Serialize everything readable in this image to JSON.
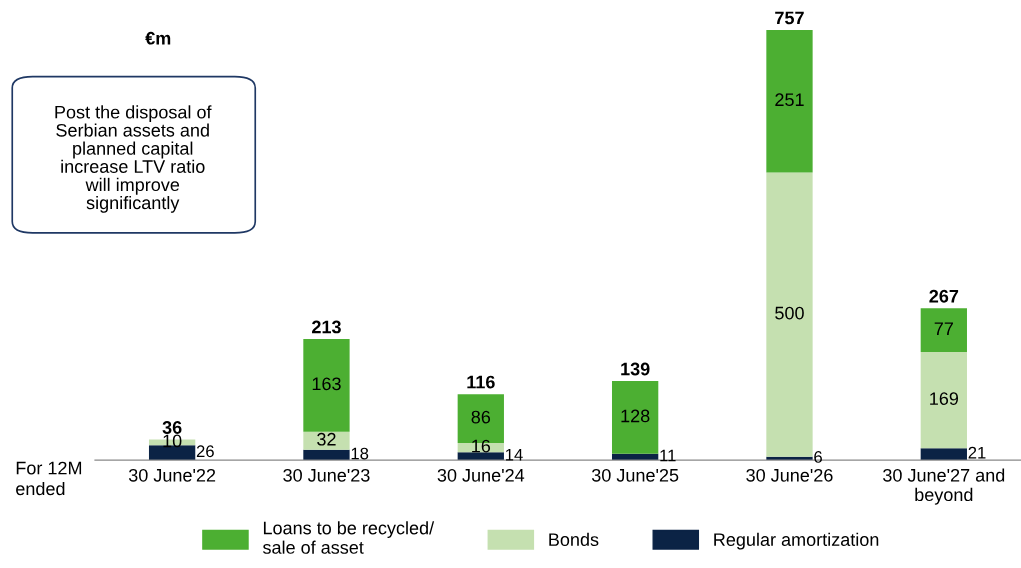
{
  "chart_data": {
    "type": "bar",
    "stacked": true,
    "categories": [
      "30 June'22",
      "30 June'23",
      "30 June'24",
      "30 June'25",
      "30 June'26",
      "30 June'27 and\nbeyond"
    ],
    "series": [
      {
        "name": "Regular amortization",
        "color": "#0b2345",
        "values": [
          26,
          18,
          14,
          11,
          6,
          21
        ],
        "value_labels": [
          "26",
          "18",
          "14",
          "11",
          "6",
          "21"
        ]
      },
      {
        "name": "Bonds",
        "color": "#c5e0b0",
        "values": [
          10,
          32,
          16,
          0,
          500,
          169
        ],
        "value_labels": [
          "10",
          "32",
          "16",
          null,
          "500",
          "169"
        ]
      },
      {
        "name": "Loans to be recycled/\nsale of asset",
        "color": "#4caf32",
        "values": [
          0,
          163,
          86,
          128,
          251,
          77
        ],
        "value_labels": [
          null,
          "163",
          "86",
          "128",
          "251",
          "77"
        ]
      }
    ],
    "totals": [
      "36",
      "213",
      "116",
      "139",
      "757",
      "267"
    ],
    "legend": "bottom",
    "annotations": [
      "€m",
      "Post the disposal of\nSerbian assets and\nplanned capital\nincrease LTV ratio\nwill improve\nsignificantly",
      "For 12M\nended"
    ]
  }
}
